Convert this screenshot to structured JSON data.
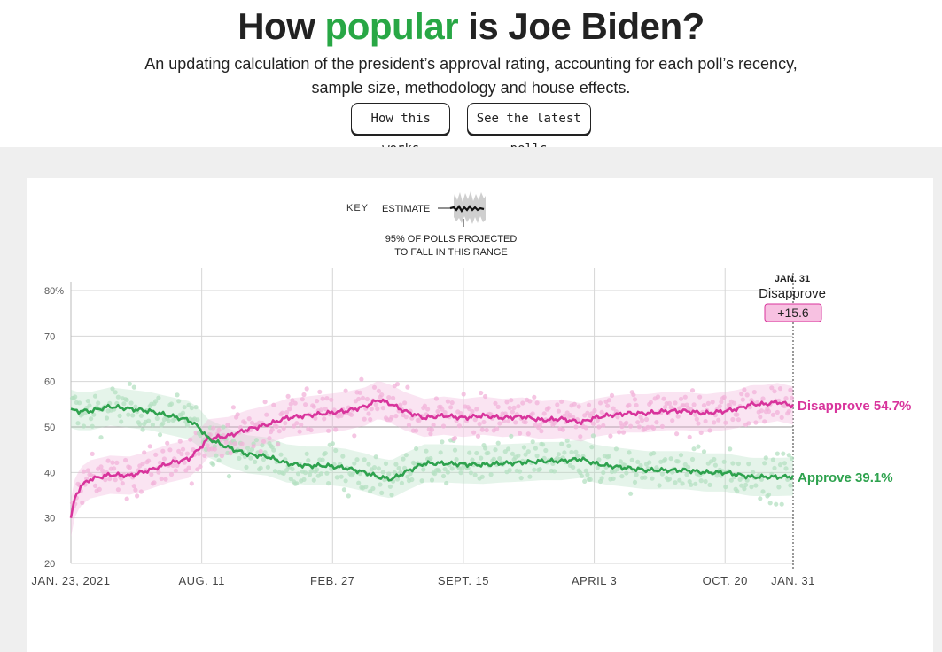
{
  "header": {
    "title_prefix": "How ",
    "title_accent": "popular",
    "title_suffix": " is Joe Biden?",
    "subtitle_line1": "An updating calculation of the president’s approval rating, accounting for each poll’s recency,",
    "subtitle_line2": "sample size, methodology and house effects.",
    "button_how": "How this works",
    "button_polls": "See the latest polls"
  },
  "key": {
    "label": "KEY",
    "estimate": "ESTIMATE",
    "range_line1": "95% OF POLLS PROJECTED",
    "range_line2": "TO FALL IN THIS RANGE"
  },
  "callout": {
    "date": "JAN. 31",
    "label": "Disapprove",
    "margin": "+15.6"
  },
  "colors": {
    "approve": "#2ea24e",
    "disapprove": "#d8349c",
    "approve_dots": "#b4e0c2",
    "disapprove_dots": "#f2b3da",
    "accent_title": "#28a745"
  },
  "chart_data": {
    "type": "line",
    "y_ticks": [
      "80%",
      "70",
      "60",
      "50",
      "40",
      "30",
      "20"
    ],
    "ylim": [
      20,
      80
    ],
    "x_tick_labels": [
      "JAN. 23, 2021",
      "AUG. 11",
      "FEB. 27",
      "SEPT. 15",
      "APRIL 3",
      "OCT. 20",
      "JAN. 31"
    ],
    "x_tick_days": [
      0,
      200,
      400,
      600,
      800,
      1000,
      1104
    ],
    "xlim_days": [
      0,
      1104
    ],
    "grid": true,
    "series": [
      {
        "name": "Disapprove",
        "end_label": "Disapprove 54.7%",
        "points": [
          [
            0,
            30
          ],
          [
            5,
            34
          ],
          [
            15,
            37
          ],
          [
            30,
            38.5
          ],
          [
            60,
            39.5
          ],
          [
            90,
            39.3
          ],
          [
            120,
            40.5
          ],
          [
            150,
            42
          ],
          [
            180,
            43
          ],
          [
            195,
            45
          ],
          [
            210,
            47.5
          ],
          [
            240,
            48
          ],
          [
            270,
            49.5
          ],
          [
            300,
            50.5
          ],
          [
            330,
            52
          ],
          [
            360,
            52.5
          ],
          [
            390,
            53
          ],
          [
            420,
            53.5
          ],
          [
            450,
            54.5
          ],
          [
            470,
            56
          ],
          [
            490,
            55
          ],
          [
            510,
            53.5
          ],
          [
            540,
            52
          ],
          [
            570,
            52.5
          ],
          [
            600,
            52
          ],
          [
            630,
            52.5
          ],
          [
            660,
            52
          ],
          [
            690,
            52.3
          ],
          [
            720,
            51.5
          ],
          [
            750,
            51.8
          ],
          [
            780,
            51
          ],
          [
            800,
            52
          ],
          [
            820,
            52.5
          ],
          [
            850,
            53
          ],
          [
            880,
            53
          ],
          [
            910,
            53.5
          ],
          [
            940,
            53.5
          ],
          [
            970,
            53
          ],
          [
            1000,
            53.5
          ],
          [
            1020,
            54
          ],
          [
            1040,
            55
          ],
          [
            1060,
            55
          ],
          [
            1080,
            55.5
          ],
          [
            1104,
            54.7
          ]
        ]
      },
      {
        "name": "Approve",
        "end_label": "Approve 39.1%",
        "points": [
          [
            0,
            54
          ],
          [
            10,
            53.5
          ],
          [
            30,
            53.5
          ],
          [
            60,
            54.5
          ],
          [
            90,
            54
          ],
          [
            120,
            53.5
          ],
          [
            150,
            52.5
          ],
          [
            180,
            51.5
          ],
          [
            195,
            50
          ],
          [
            210,
            47.5
          ],
          [
            240,
            45.5
          ],
          [
            270,
            44
          ],
          [
            300,
            43.5
          ],
          [
            330,
            42
          ],
          [
            360,
            41.5
          ],
          [
            390,
            41.5
          ],
          [
            420,
            41
          ],
          [
            450,
            40
          ],
          [
            470,
            39
          ],
          [
            490,
            38.5
          ],
          [
            510,
            40
          ],
          [
            540,
            42
          ],
          [
            570,
            42
          ],
          [
            600,
            41.8
          ],
          [
            630,
            41.7
          ],
          [
            660,
            42
          ],
          [
            690,
            42.2
          ],
          [
            720,
            42.5
          ],
          [
            750,
            42.5
          ],
          [
            780,
            43
          ],
          [
            800,
            42
          ],
          [
            820,
            41.5
          ],
          [
            850,
            41
          ],
          [
            880,
            40.5
          ],
          [
            910,
            40.5
          ],
          [
            940,
            40.5
          ],
          [
            970,
            40
          ],
          [
            1000,
            40
          ],
          [
            1020,
            39.5
          ],
          [
            1040,
            39
          ],
          [
            1060,
            39
          ],
          [
            1080,
            39
          ],
          [
            1104,
            39.1
          ]
        ]
      }
    ]
  }
}
